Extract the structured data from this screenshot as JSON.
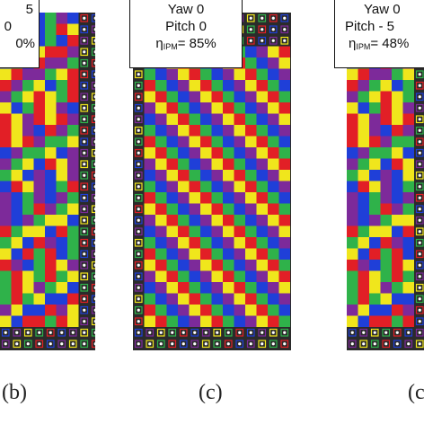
{
  "panels": [
    {
      "id": "b",
      "caption": "(b)",
      "yaw_line": "5",
      "pitch_line": "0",
      "efficiency_tail": "0%",
      "efficiency_prefix": "",
      "efficiency_sub": ""
    },
    {
      "id": "c",
      "caption": "(c)",
      "yaw_line": "Yaw 0",
      "pitch_line": "Pitch 0",
      "efficiency_prefix": "η",
      "efficiency_sub": "IPM",
      "efficiency_tail": "= 85%"
    },
    {
      "id": "d",
      "caption": "(c",
      "yaw_line": "Yaw 0",
      "pitch_line": "Pitch - 5",
      "efficiency_prefix": "η",
      "efficiency_sub": "IPM",
      "efficiency_tail": "= 48%"
    }
  ],
  "colors": {
    "tile_palette": [
      "#e21f26",
      "#1f3fd8",
      "#f0e61c",
      "#2fb24a",
      "#7d2a9a",
      "#2a2a2a",
      "#ffffff"
    ],
    "border_tile": "#2b2b2b",
    "label_border": "#111111"
  }
}
